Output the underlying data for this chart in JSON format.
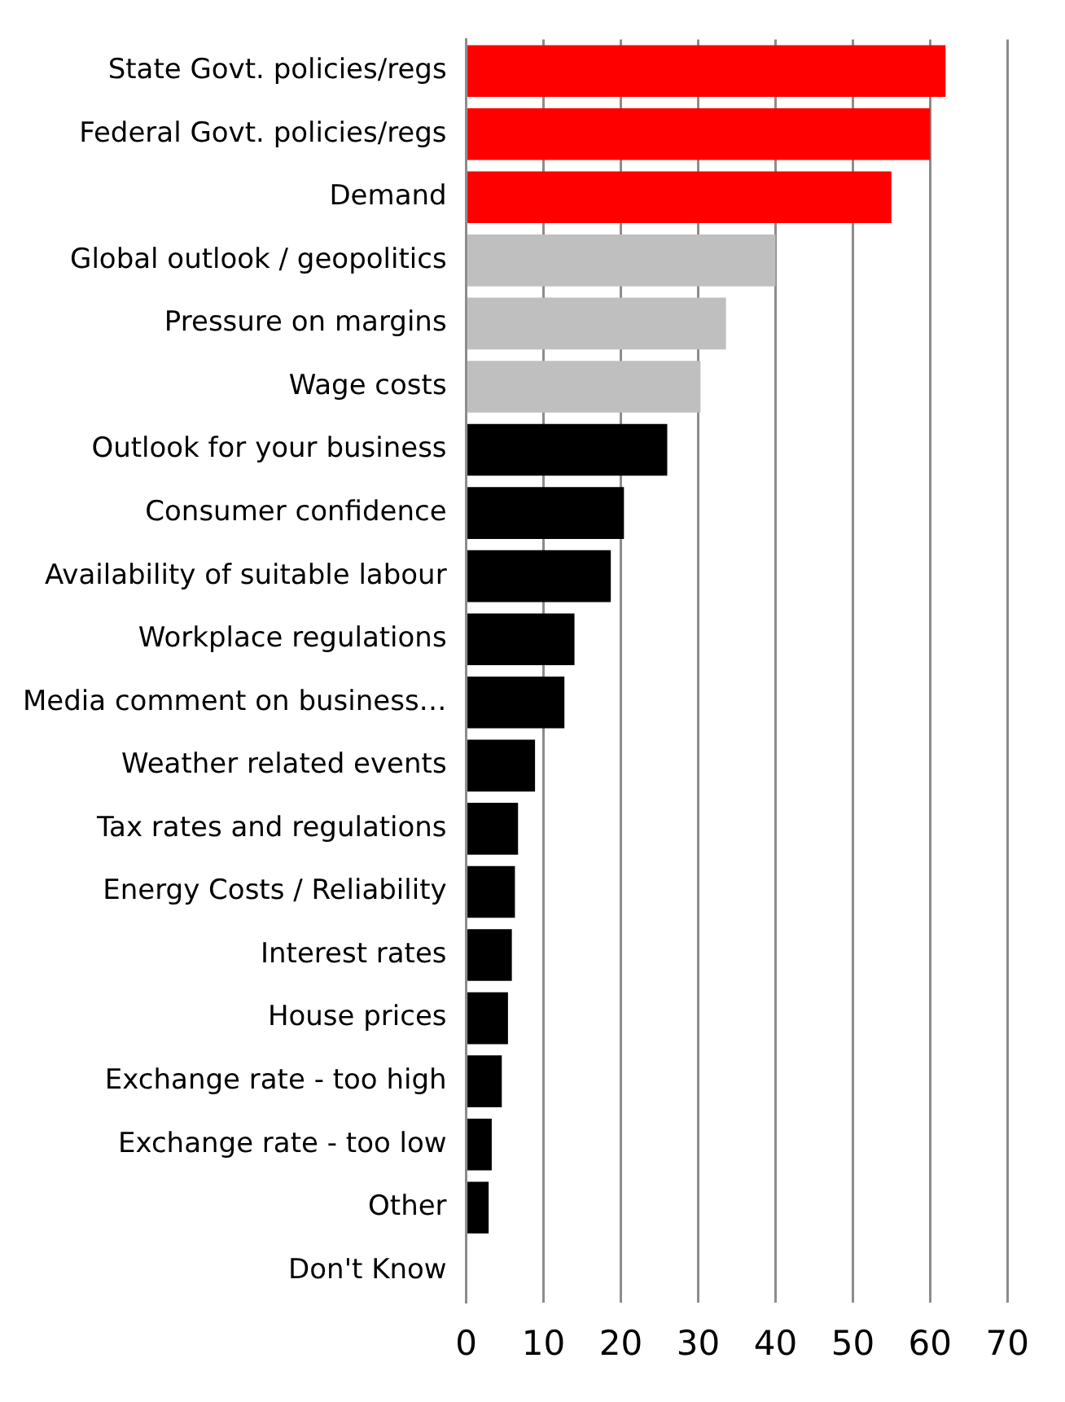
{
  "chart_data": {
    "type": "bar",
    "orientation": "horizontal",
    "categories": [
      "State Govt. policies/regs",
      "Federal Govt. policies/regs",
      "Demand",
      "Global outlook / geopolitics",
      "Pressure on margins",
      "Wage costs",
      "Outlook for your business",
      "Consumer confidence",
      "Availability of suitable labour",
      "Workplace regulations",
      "Media comment on business…",
      "Weather related events",
      "Tax rates and regulations",
      "Energy Costs / Reliability",
      "Interest rates",
      "House prices",
      "Exchange rate - too high",
      "Exchange rate - too low",
      "Other",
      "Don't Know"
    ],
    "values": [
      62,
      60,
      55,
      40,
      33.6,
      30.3,
      26,
      20.4,
      18.7,
      14,
      12.7,
      8.9,
      6.7,
      6.3,
      5.9,
      5.4,
      4.6,
      3.3,
      2.9,
      0
    ],
    "colors": [
      "#ff0000",
      "#ff0000",
      "#ff0000",
      "#bfbfbf",
      "#bfbfbf",
      "#bfbfbf",
      "#000000",
      "#000000",
      "#000000",
      "#000000",
      "#000000",
      "#000000",
      "#000000",
      "#000000",
      "#000000",
      "#000000",
      "#000000",
      "#000000",
      "#000000",
      "#000000"
    ],
    "xlim": [
      0,
      70
    ],
    "xticks": [
      0,
      10,
      20,
      30,
      40,
      50,
      60,
      70
    ],
    "grid": "x",
    "legend": false
  }
}
